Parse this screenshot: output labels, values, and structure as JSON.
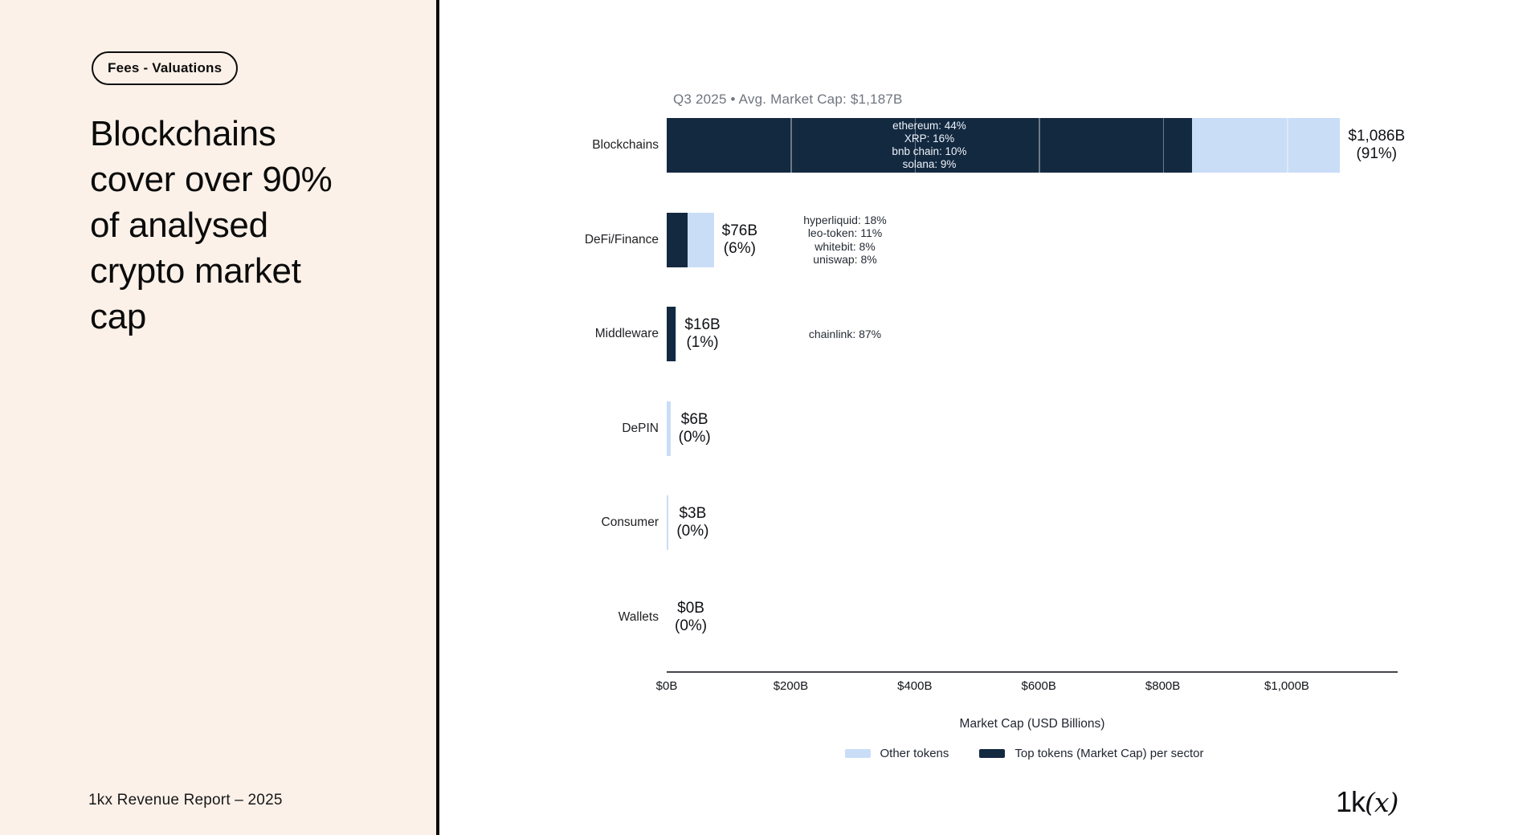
{
  "sidebar": {
    "badge": "Fees - Valuations",
    "title": "Blockchains\ncover over 90%\nof analysed\ncrypto market\ncap",
    "footer": "1kx Revenue Report  – 2025"
  },
  "logo": {
    "prefix": "1k",
    "open": "(",
    "x": "x",
    "close": ")"
  },
  "chart_data": {
    "type": "bar",
    "orientation": "horizontal",
    "title": "Q3 2025 • Avg. Market Cap: $1,187B",
    "xlabel": "Market Cap (USD Billions)",
    "categories": [
      "Blockchains",
      "DeFi/Finance",
      "Middleware",
      "DePIN",
      "Consumer",
      "Wallets"
    ],
    "totals_billions": [
      1086,
      76,
      16,
      6,
      3,
      0
    ],
    "value_labels": [
      "$1,086B",
      "$76B",
      "$16B",
      "$6B",
      "$3B",
      "$0B"
    ],
    "pct_labels": [
      "(91%)",
      "(6%)",
      "(1%)",
      "(0%)",
      "(0%)",
      "(0%)"
    ],
    "top_token_share": [
      0.78,
      0.45,
      0.87,
      0,
      0,
      0
    ],
    "annotations": [
      {
        "inside": true,
        "lines": [
          "ethereum: 44%",
          "XRP: 16%",
          "bnb chain: 10%",
          "solana: 9%"
        ]
      },
      {
        "inside": false,
        "lines": [
          "hyperliquid: 18%",
          "leo-token: 11%",
          "whitebit: 8%",
          "uniswap: 8%"
        ]
      },
      {
        "inside": false,
        "lines": [
          "chainlink: 87%"
        ]
      },
      null,
      null,
      null
    ],
    "x_ticks": [
      {
        "label": "$0B",
        "value": 0
      },
      {
        "label": "$200B",
        "value": 200
      },
      {
        "label": "$400B",
        "value": 400
      },
      {
        "label": "$600B",
        "value": 600
      },
      {
        "label": "$800B",
        "value": 800
      },
      {
        "label": "$1,000B",
        "value": 1000
      }
    ],
    "xlim": [
      0,
      1180
    ],
    "legend": [
      {
        "label": "Other tokens",
        "color": "#c9ddf7"
      },
      {
        "label": "Top tokens (Market Cap) per sector",
        "color": "#132940"
      }
    ],
    "colors": {
      "top": "#132940",
      "other": "#c9ddf7"
    },
    "legend_position": "bottom",
    "grid": "faint-white-over-bars"
  }
}
